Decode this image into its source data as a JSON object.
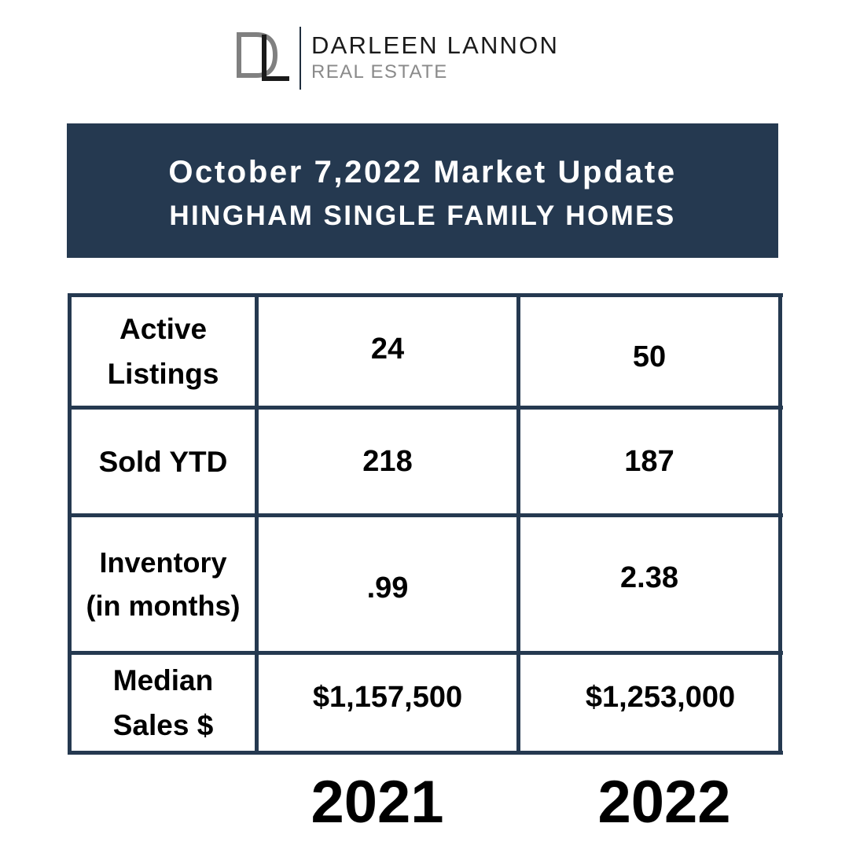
{
  "brand": {
    "name": "DARLEEN LANNON",
    "subtitle": "REAL ESTATE",
    "mark_color": "#808080",
    "dark_color": "#1a1a1a"
  },
  "header": {
    "title": "October 7,2022 Market Update",
    "subtitle": "HINGHAM SINGLE FAMILY HOMES",
    "background_color": "#253950"
  },
  "table": {
    "rows": [
      {
        "label_line1": "Active",
        "label_line2": "Listings",
        "value_2021": "24",
        "value_2022": "50"
      },
      {
        "label_line1": "Sold YTD",
        "label_line2": "",
        "value_2021": "218",
        "value_2022": "187"
      },
      {
        "label_line1": "Inventory",
        "label_line2": "(in months)",
        "value_2021": ".99",
        "value_2022": "2.38"
      },
      {
        "label_line1": "Median",
        "label_line2": "Sales $",
        "value_2021": "$1,157,500",
        "value_2022": "$1,253,000"
      }
    ],
    "border_color": "#253950"
  },
  "years": {
    "col_2021": "2021",
    "col_2022": "2022"
  }
}
